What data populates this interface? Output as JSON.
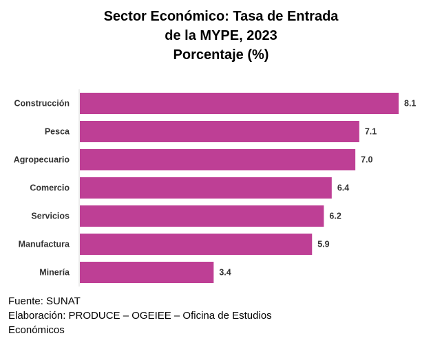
{
  "chart_data": {
    "type": "bar",
    "orientation": "horizontal",
    "title_lines": [
      "Sector Económico: Tasa de Entrada",
      "de la MYPE, 2023",
      "Porcentaje (%)"
    ],
    "categories": [
      "Construcción",
      "Pesca",
      "Agropecuario",
      "Comercio",
      "Servicios",
      "Manufactura",
      "Minería"
    ],
    "values": [
      8.1,
      7.1,
      7.0,
      6.4,
      6.2,
      5.9,
      3.4
    ],
    "value_labels": [
      "8.1",
      "7.1",
      "7.0",
      "6.4",
      "6.2",
      "5.9",
      "3.4"
    ],
    "xlim": [
      0,
      8.1
    ],
    "bar_color": "#be3f95",
    "grid": false,
    "legend": "none"
  },
  "footer": {
    "source": "Fuente: SUNAT",
    "credit_line1": "Elaboración: PRODUCE – OGEIEE – Oficina de Estudios",
    "credit_line2": "Económicos"
  }
}
